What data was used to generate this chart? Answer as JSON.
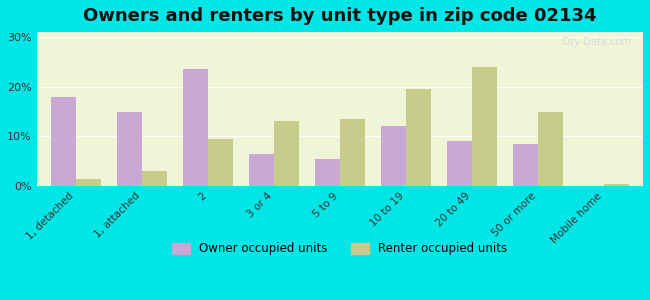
{
  "title": "Owners and renters by unit type in zip code 02134",
  "categories": [
    "1, detached",
    "1, attached",
    "2",
    "3 or 4",
    "5 to 9",
    "10 to 19",
    "20 to 49",
    "50 or more",
    "Mobile home"
  ],
  "owner_values": [
    18.0,
    15.0,
    23.5,
    6.5,
    5.5,
    12.0,
    9.0,
    8.5,
    0.0
  ],
  "renter_values": [
    1.5,
    3.0,
    9.5,
    13.0,
    13.5,
    19.5,
    24.0,
    15.0,
    0.5
  ],
  "owner_color": "#c9a8d4",
  "renter_color": "#c8cc8a",
  "background_color": "#00e5e5",
  "plot_bg_start": "#f0f5d8",
  "plot_bg_end": "#ffffff",
  "yticks": [
    0,
    10,
    20,
    30
  ],
  "ylim": [
    0,
    31
  ],
  "legend_owner": "Owner occupied units",
  "legend_renter": "Renter occupied units",
  "title_fontsize": 13,
  "bar_width": 0.38,
  "figsize": [
    6.5,
    3.0
  ],
  "dpi": 100
}
